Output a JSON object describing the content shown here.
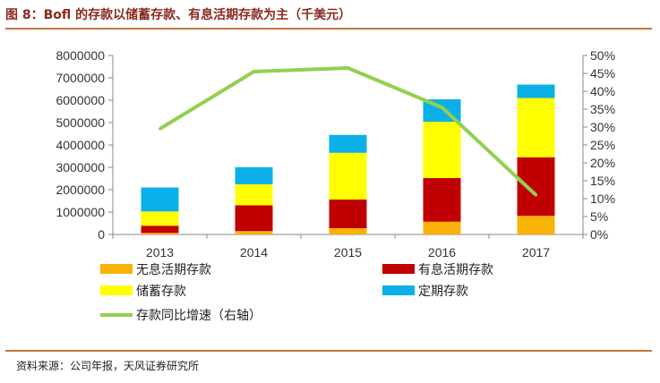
{
  "figure_title": "图 8：Bofl 的存款以储蓄存款、有息活期存款为主（千美元）",
  "source": "资料来源：公司年报，天风证券研究所",
  "chart_data": {
    "type": "bar",
    "stacked": true,
    "categories": [
      "2013",
      "2014",
      "2015",
      "2016",
      "2017"
    ],
    "series": [
      {
        "name": "无息活期存款",
        "color": "#f9b208",
        "values": [
          70000,
          150000,
          280000,
          570000,
          830000
        ]
      },
      {
        "name": "有息活期存款",
        "color": "#c00000",
        "values": [
          320000,
          1150000,
          1280000,
          1950000,
          2620000
        ]
      },
      {
        "name": "储蓄存款",
        "color": "#ffff00",
        "values": [
          640000,
          940000,
          2090000,
          2520000,
          2650000
        ]
      },
      {
        "name": "定期存款",
        "color": "#0cb0e8",
        "values": [
          1070000,
          770000,
          800000,
          1000000,
          600000
        ]
      }
    ],
    "line": {
      "name": "存款同比增速（右轴）",
      "color": "#92d050",
      "values": [
        0.295,
        0.455,
        0.465,
        0.355,
        0.11
      ]
    },
    "y_left": {
      "min": 0,
      "max": 8000000,
      "ticks": [
        0,
        1000000,
        2000000,
        3000000,
        4000000,
        5000000,
        6000000,
        7000000,
        8000000
      ]
    },
    "y_right": {
      "min": 0,
      "max": 0.5,
      "ticks": [
        "0%",
        "5%",
        "10%",
        "15%",
        "20%",
        "25%",
        "30%",
        "35%",
        "40%",
        "45%",
        "50%"
      ]
    },
    "grid": false,
    "legend_position": "bottom"
  }
}
